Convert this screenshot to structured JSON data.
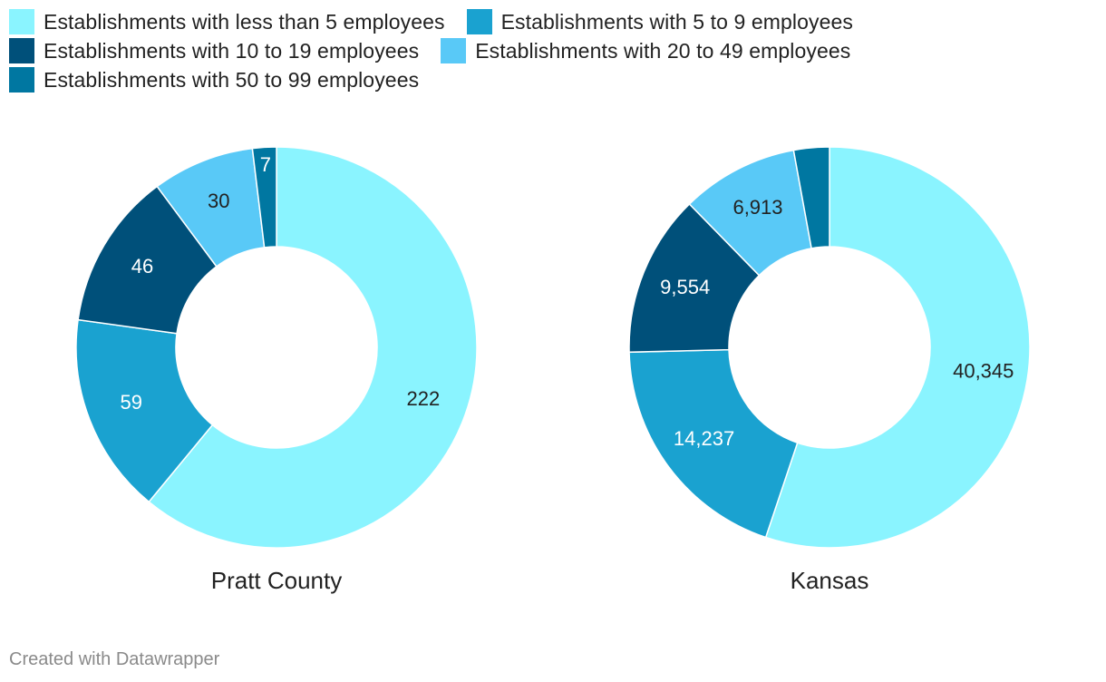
{
  "legend": [
    {
      "label": "Establishments with less than 5 employees",
      "color": "#8af4ff"
    },
    {
      "label": "Establishments with 5 to 9 employees",
      "color": "#1aa2d0"
    },
    {
      "label": "Establishments with 10 to 19 employees",
      "color": "#00507a"
    },
    {
      "label": "Establishments with 20 to 49 employees",
      "color": "#59c9f7"
    },
    {
      "label": "Establishments with 50 to 99 employees",
      "color": "#0077a1"
    }
  ],
  "chart_data": [
    {
      "type": "pie",
      "donut": true,
      "title": "Pratt County",
      "categories": [
        "Establishments with less than 5 employees",
        "Establishments with 5 to 9 employees",
        "Establishments with 10 to 19 employees",
        "Establishments with 20 to 49 employees",
        "Establishments with 50 to 99 employees"
      ],
      "values": [
        222,
        59,
        46,
        30,
        7
      ],
      "value_labels": [
        "222",
        "59",
        "46",
        "30",
        "7"
      ],
      "colors": [
        "#8af4ff",
        "#1aa2d0",
        "#00507a",
        "#59c9f7",
        "#0077a1"
      ],
      "label_colors": [
        "#222222",
        "#ffffff",
        "#ffffff",
        "#222222",
        "#ffffff"
      ],
      "legend_position": "top"
    },
    {
      "type": "pie",
      "donut": true,
      "title": "Kansas",
      "categories": [
        "Establishments with less than 5 employees",
        "Establishments with 5 to 9 employees",
        "Establishments with 10 to 19 employees",
        "Establishments with 20 to 49 employees",
        "Establishments with 50 to 99 employees"
      ],
      "values": [
        40345,
        14237,
        9554,
        6913,
        2100
      ],
      "value_labels": [
        "40,345",
        "14,237",
        "9,554",
        "6,913",
        ""
      ],
      "colors": [
        "#8af4ff",
        "#1aa2d0",
        "#00507a",
        "#59c9f7",
        "#0077a1"
      ],
      "label_colors": [
        "#222222",
        "#ffffff",
        "#ffffff",
        "#222222",
        "#ffffff"
      ],
      "legend_position": "top"
    }
  ],
  "footer": {
    "credit": "Created with Datawrapper"
  }
}
